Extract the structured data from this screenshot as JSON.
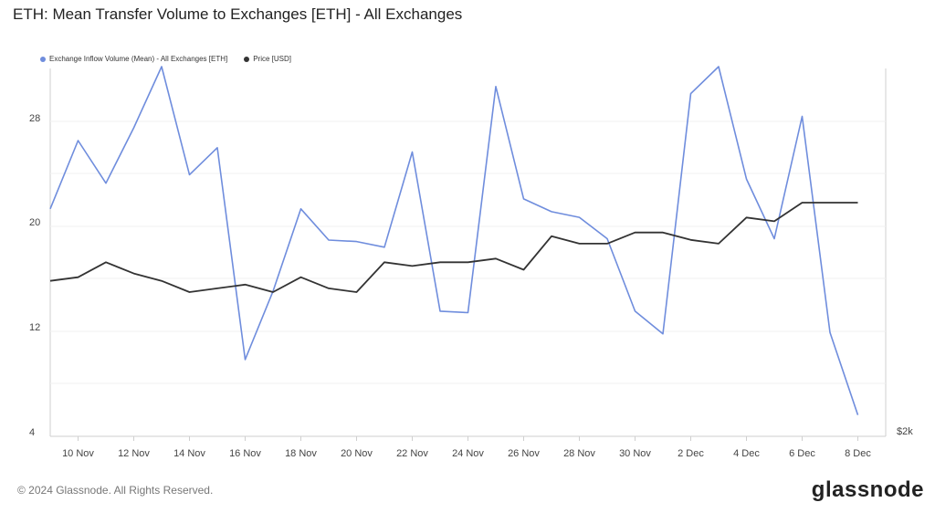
{
  "title": "ETH: Mean Transfer Volume to Exchanges [ETH] - All Exchanges",
  "footer": "© 2024 Glassnode. All Rights Reserved.",
  "logo": "glassnode",
  "legend": [
    {
      "label": "Exchange Inflow Volume (Mean) - All Exchanges [ETH]",
      "color": "#6f8ddd"
    },
    {
      "label": "Price [USD]",
      "color": "#333333"
    }
  ],
  "chart_data": {
    "type": "line",
    "x": [
      "9 Nov",
      "10 Nov",
      "11 Nov",
      "12 Nov",
      "13 Nov",
      "14 Nov",
      "15 Nov",
      "16 Nov",
      "17 Nov",
      "18 Nov",
      "19 Nov",
      "20 Nov",
      "21 Nov",
      "22 Nov",
      "23 Nov",
      "24 Nov",
      "25 Nov",
      "26 Nov",
      "27 Nov",
      "28 Nov",
      "29 Nov",
      "30 Nov",
      "1 Dec",
      "2 Dec",
      "3 Dec",
      "4 Dec",
      "5 Dec",
      "6 Dec",
      "7 Dec",
      "8 Dec"
    ],
    "x_tick_labels": [
      "10 Nov",
      "12 Nov",
      "14 Nov",
      "16 Nov",
      "18 Nov",
      "20 Nov",
      "22 Nov",
      "24 Nov",
      "26 Nov",
      "28 Nov",
      "30 Nov",
      "2 Dec",
      "4 Dec",
      "6 Dec",
      "8 Dec"
    ],
    "y_tick_labels": [
      "4",
      "12",
      "20",
      "28"
    ],
    "ylim": [
      4,
      30
    ],
    "right_axis_label": "$2k",
    "series": [
      {
        "name": "Exchange Inflow Volume (Mean) - All Exchanges [ETH]",
        "color": "#6f8ddd",
        "axis": "left",
        "values": [
          20.0,
          24.8,
          21.8,
          25.7,
          30.0,
          22.4,
          24.3,
          9.4,
          14.2,
          20.0,
          17.8,
          17.7,
          17.3,
          24.0,
          12.8,
          12.7,
          28.6,
          20.7,
          19.8,
          19.4,
          17.9,
          12.8,
          11.2,
          28.1,
          30.0,
          22.1,
          17.9,
          26.5,
          11.3,
          5.5
        ]
      },
      {
        "name": "Price [USD]",
        "color": "#333333",
        "axis": "right",
        "values": [
          2.97,
          2.98,
          3.02,
          2.99,
          2.97,
          2.94,
          2.95,
          2.96,
          2.94,
          2.98,
          2.95,
          2.94,
          3.02,
          3.01,
          3.02,
          3.02,
          3.03,
          3.0,
          3.09,
          3.07,
          3.07,
          3.1,
          3.1,
          3.08,
          3.07,
          3.14,
          3.13,
          3.18,
          3.18,
          3.18
        ]
      }
    ]
  }
}
